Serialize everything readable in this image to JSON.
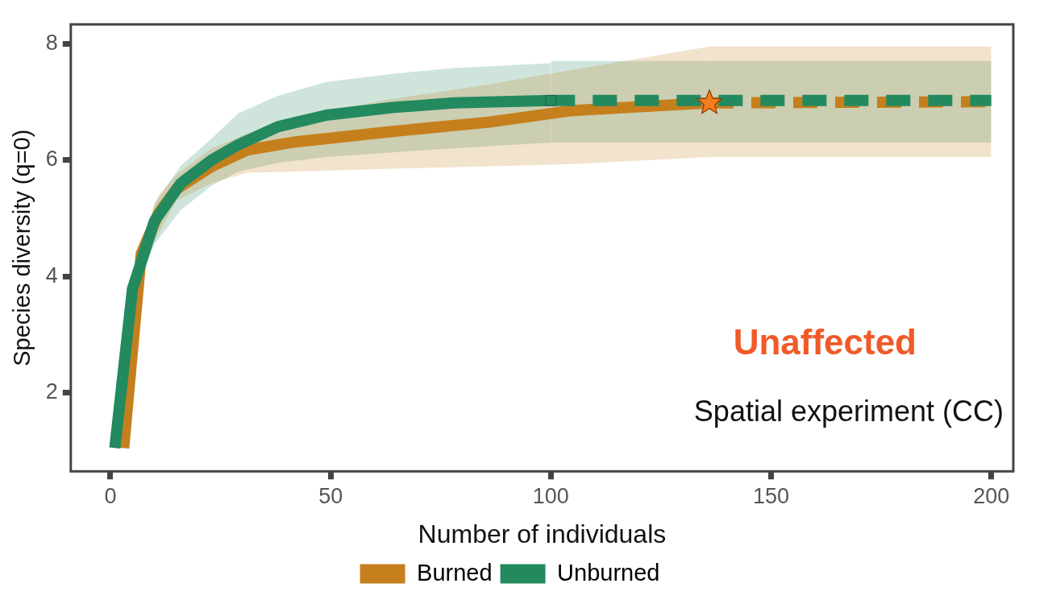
{
  "chart_data": {
    "type": "line",
    "xlabel": "Number of individuals",
    "ylabel": "Species diversity (q=0)",
    "annotations": [
      "Unaffected",
      "Spatial experiment (CC)"
    ],
    "xlim": [
      -9,
      205
    ],
    "ylim": [
      0.65,
      8.33
    ],
    "xticks": [
      0,
      50,
      100,
      150,
      200
    ],
    "yticks": [
      2,
      4,
      6,
      8
    ],
    "grid": false,
    "legend": "bottom",
    "marker": "none",
    "series": [
      {
        "name": "Burned",
        "color": "#c57f1c",
        "line_style": "solid",
        "x": [
          3,
          7,
          11,
          15,
          23,
          31,
          42,
          64,
          86,
          105,
          136
        ],
        "values": [
          1.05,
          4.39,
          5.09,
          5.5,
          5.89,
          6.17,
          6.31,
          6.49,
          6.65,
          6.85,
          6.98
        ],
        "lower": [
          1.0,
          4.2,
          4.75,
          5.3,
          5.6,
          5.78,
          5.8,
          5.85,
          5.89,
          5.93,
          6.05
        ],
        "upper": [
          1.1,
          4.6,
          5.4,
          5.75,
          6.2,
          6.45,
          6.75,
          7.05,
          7.3,
          7.55,
          7.95
        ]
      },
      {
        "name": "Unburned",
        "color": "#238a60",
        "line_style": "solid",
        "x": [
          1,
          5,
          10,
          16,
          23,
          29,
          38,
          49,
          64,
          78,
          100
        ],
        "values": [
          1.05,
          3.78,
          4.95,
          5.6,
          6.0,
          6.26,
          6.57,
          6.77,
          6.9,
          6.98,
          7.02
        ],
        "lower": [
          1.0,
          3.6,
          4.55,
          5.14,
          5.56,
          5.8,
          5.95,
          6.05,
          6.13,
          6.2,
          6.3
        ],
        "upper": [
          1.1,
          3.95,
          5.25,
          5.9,
          6.37,
          6.8,
          7.1,
          7.34,
          7.48,
          7.58,
          7.66
        ]
      },
      {
        "color": "#c57f1c",
        "line_style": "dashed",
        "x": [
          136,
          200
        ],
        "values": [
          6.98,
          7.0
        ],
        "lower": [
          6.05,
          6.05
        ],
        "upper": [
          7.95,
          7.95
        ]
      },
      {
        "color": "#238a60",
        "line_style": "dashed",
        "x": [
          100,
          200
        ],
        "values": [
          7.02,
          7.02
        ],
        "lower": [
          6.3,
          6.3
        ],
        "upper": [
          7.7,
          7.7
        ]
      },
      {
        "type": "scatter",
        "color": "#f47d20",
        "marker": "star",
        "x": [
          136
        ],
        "values": [
          6.98
        ]
      },
      {
        "type": "scatter",
        "color": "#238a60",
        "marker": "square",
        "x": [
          100
        ],
        "values": [
          7.02
        ]
      }
    ]
  }
}
